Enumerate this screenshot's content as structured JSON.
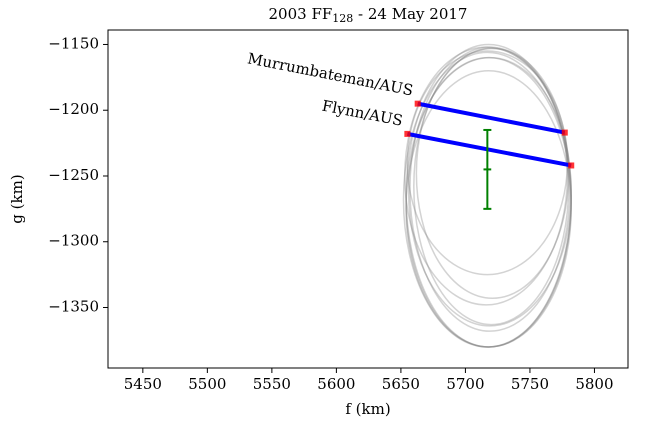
{
  "chart_data": {
    "type": "occultation",
    "title": [
      "2003 FF",
      "128",
      " - 24 May 2017"
    ],
    "xlabel": "f (km)",
    "ylabel": "g (km)",
    "xlim": [
      5423,
      5826
    ],
    "ylim": [
      -1396,
      -1139
    ],
    "xticks": [
      5450,
      5500,
      5550,
      5600,
      5650,
      5700,
      5750,
      5800
    ],
    "yticks": [
      {
        "value": -1150,
        "label": "−1150"
      },
      {
        "value": -1200,
        "label": "−1200"
      },
      {
        "value": -1250,
        "label": "−1250"
      },
      {
        "value": -1300,
        "label": "−1300"
      },
      {
        "value": -1350,
        "label": "−1350"
      }
    ],
    "ellipse_color": "#808080",
    "ellipses": [
      {
        "x": 5718,
        "y": -1265,
        "a": 64,
        "b": 115
      },
      {
        "x": 5719,
        "y": -1260,
        "a": 62,
        "b": 108
      },
      {
        "x": 5717,
        "y": -1268,
        "a": 65,
        "b": 112
      },
      {
        "x": 5720,
        "y": -1258,
        "a": 60,
        "b": 105
      },
      {
        "x": 5716,
        "y": -1250,
        "a": 63,
        "b": 98
      },
      {
        "x": 5718,
        "y": -1270,
        "a": 64,
        "b": 110
      },
      {
        "x": 5721,
        "y": -1248,
        "a": 59,
        "b": 95
      },
      {
        "x": 5717,
        "y": -1240,
        "a": 62,
        "b": 85
      },
      {
        "x": 5719,
        "y": -1262,
        "a": 63,
        "b": 102
      },
      {
        "x": 5718,
        "y": -1275,
        "a": 64,
        "b": 105
      }
    ],
    "chords": [
      {
        "name": "Murrumbateman/AUS",
        "color": "#0000ff",
        "marker_color": "#ff0000",
        "x": [
          5663,
          5777
        ],
        "y": [
          -1195,
          -1217
        ]
      },
      {
        "name": "Flynn/AUS",
        "color": "#0000ff",
        "marker_color": "#ff0000",
        "x": [
          5655,
          5782
        ],
        "y": [
          -1218,
          -1242
        ]
      }
    ],
    "center": {
      "color": "#008000",
      "x": 5717,
      "y": -1245,
      "xerr": 3,
      "yerr": 30
    }
  }
}
